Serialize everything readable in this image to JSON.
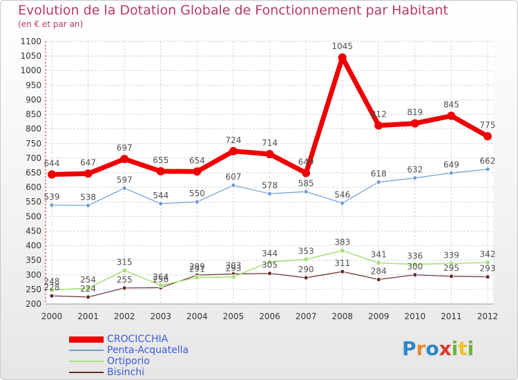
{
  "header": {
    "title": "Evolution de la Dotation Globale de Fonctionnement par Habitant",
    "subtitle": "(en € et par an)"
  },
  "logo": {
    "letters": [
      "P",
      "r",
      "o",
      "x",
      "i",
      "t",
      "i"
    ],
    "colors": [
      "#2e86c8",
      "#e8892b",
      "#2e86c8",
      "#d93a2b",
      "#6db33f",
      "#f2c12e",
      "#6db33f"
    ]
  },
  "chart_data": {
    "type": "line",
    "title": "Evolution de la Dotation Globale de Fonctionnement par Habitant",
    "subtitle": "(en € et par an)",
    "xlabel": "",
    "ylabel": "",
    "x": [
      "2000",
      "2001",
      "2002",
      "2003",
      "2004",
      "2005",
      "2006",
      "2007",
      "2008",
      "2009",
      "2010",
      "2011",
      "2012"
    ],
    "ylim": [
      200,
      1100
    ],
    "yticks": [
      200,
      250,
      300,
      350,
      400,
      450,
      500,
      550,
      600,
      650,
      700,
      750,
      800,
      850,
      900,
      950,
      1000,
      1050,
      1100
    ],
    "grid": true,
    "legend_position": "bottom-left",
    "series": [
      {
        "name": "CROCICCHIA",
        "color": "#ee0000",
        "label_color": "#4f4f4f",
        "values": [
          644,
          647,
          697,
          655,
          654,
          724,
          714,
          649,
          1045,
          812,
          819,
          845,
          775
        ]
      },
      {
        "name": "Penta-Acquatella",
        "color": "#6d9ecf",
        "label_color": "#4f4f4f",
        "values": [
          539,
          538,
          597,
          544,
          550,
          607,
          578,
          585,
          546,
          618,
          632,
          649,
          662
        ]
      },
      {
        "name": "Ortiporio",
        "color": "#a9e07d",
        "label_color": "#4f4f4f",
        "values": [
          248,
          254,
          315,
          264,
          291,
          293,
          344,
          353,
          383,
          341,
          336,
          339,
          342
        ]
      },
      {
        "name": "Bisinchi",
        "color": "#6b2a2a",
        "label_color": "#4f4f4f",
        "values": [
          228,
          224,
          255,
          256,
          299,
          303,
          305,
          290,
          311,
          284,
          300,
          295,
          293
        ]
      }
    ]
  }
}
